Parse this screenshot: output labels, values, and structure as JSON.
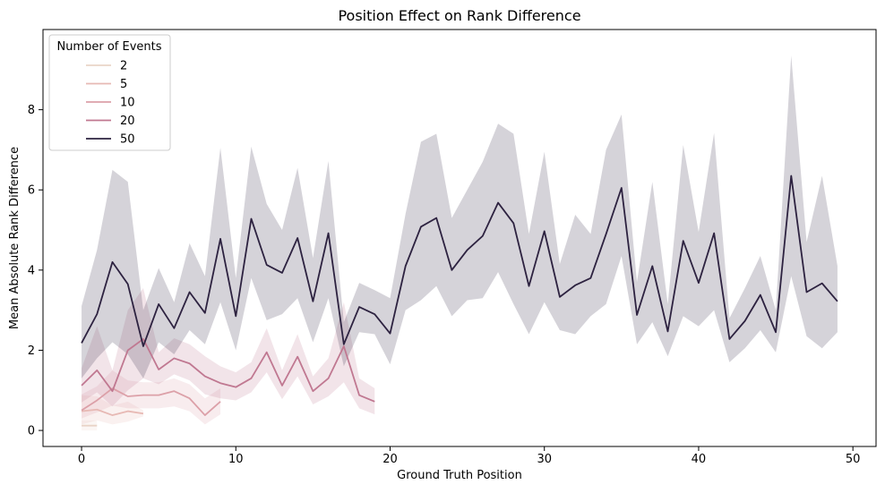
{
  "chart_data": {
    "type": "line",
    "title": "Position Effect on Rank Difference",
    "xlabel": "Ground Truth Position",
    "ylabel": "Mean Absolute Rank Difference",
    "xlim": [
      -2.5,
      51.5
    ],
    "ylim": [
      -0.4,
      10.0
    ],
    "xticks": [
      0,
      10,
      20,
      30,
      40,
      50
    ],
    "yticks": [
      0,
      2,
      4,
      6,
      8
    ],
    "grid": false,
    "legend": {
      "title": "Number of Events",
      "position": "upper-left"
    },
    "series": [
      {
        "name": "2",
        "color": "#e9d4c7",
        "x": [
          0,
          1
        ],
        "values": [
          0.12,
          0.12
        ],
        "lower": [
          0.0,
          0.0
        ],
        "upper": [
          0.25,
          0.25
        ]
      },
      {
        "name": "5",
        "color": "#e7b9b4",
        "x": [
          0,
          1,
          2,
          3,
          4
        ],
        "values": [
          0.48,
          0.52,
          0.38,
          0.48,
          0.42
        ],
        "lower": [
          0.15,
          0.25,
          0.15,
          0.22,
          0.35
        ],
        "upper": [
          0.88,
          0.85,
          0.62,
          0.72,
          0.5
        ]
      },
      {
        "name": "10",
        "color": "#dca0a8",
        "x": [
          0,
          1,
          2,
          3,
          4,
          5,
          6,
          7,
          8,
          9
        ],
        "values": [
          0.5,
          0.75,
          1.05,
          0.85,
          0.88,
          0.88,
          0.98,
          0.8,
          0.38,
          0.72
        ],
        "lower": [
          0.3,
          0.45,
          0.62,
          0.55,
          0.55,
          0.55,
          0.6,
          0.48,
          0.15,
          0.4
        ],
        "upper": [
          0.9,
          1.1,
          1.5,
          1.25,
          1.2,
          1.2,
          1.3,
          1.15,
          0.8,
          1.05
        ]
      },
      {
        "name": "20",
        "color": "#c07891",
        "x": [
          0,
          1,
          2,
          3,
          4,
          5,
          6,
          7,
          8,
          9,
          10,
          11,
          12,
          13,
          14,
          15,
          16,
          17,
          18,
          19
        ],
        "values": [
          1.12,
          1.5,
          0.98,
          2.0,
          2.28,
          1.52,
          1.8,
          1.67,
          1.35,
          1.18,
          1.08,
          1.3,
          1.95,
          1.12,
          1.84,
          0.98,
          1.3,
          2.1,
          0.88,
          0.72
        ],
        "lower": [
          0.7,
          0.95,
          0.6,
          1.0,
          1.3,
          1.15,
          1.4,
          1.25,
          0.9,
          0.8,
          0.75,
          0.95,
          1.45,
          0.78,
          1.35,
          0.65,
          0.85,
          1.2,
          0.55,
          0.4
        ],
        "upper": [
          1.55,
          2.6,
          1.5,
          3.0,
          3.55,
          1.95,
          2.3,
          2.15,
          1.85,
          1.6,
          1.45,
          1.7,
          2.55,
          1.5,
          2.4,
          1.35,
          1.8,
          3.2,
          1.3,
          1.05
        ]
      },
      {
        "name": "50",
        "color": "#2d2240",
        "x": [
          0,
          1,
          2,
          3,
          4,
          5,
          6,
          7,
          8,
          9,
          10,
          11,
          12,
          13,
          14,
          15,
          16,
          17,
          18,
          19,
          20,
          21,
          22,
          23,
          24,
          25,
          26,
          27,
          28,
          29,
          30,
          31,
          32,
          33,
          34,
          35,
          36,
          37,
          38,
          39,
          40,
          41,
          42,
          43,
          44,
          45,
          46,
          47,
          48,
          49
        ],
        "values": [
          2.18,
          2.9,
          4.2,
          3.65,
          2.1,
          3.15,
          2.55,
          3.45,
          2.93,
          4.78,
          2.85,
          5.28,
          4.13,
          3.93,
          4.8,
          3.22,
          4.92,
          2.15,
          3.08,
          2.9,
          2.42,
          4.1,
          5.08,
          5.3,
          4.0,
          4.5,
          4.85,
          5.68,
          5.17,
          3.6,
          4.97,
          3.33,
          3.62,
          3.8,
          4.9,
          6.05,
          2.88,
          4.1,
          2.47,
          4.73,
          3.68,
          4.92,
          2.28,
          2.73,
          3.38,
          2.45,
          6.35,
          3.45,
          3.67,
          3.22
        ],
        "lower": [
          1.3,
          1.8,
          2.2,
          1.9,
          1.3,
          2.2,
          1.9,
          2.5,
          2.15,
          3.2,
          2.0,
          3.8,
          2.75,
          2.9,
          3.3,
          2.2,
          3.3,
          1.6,
          2.45,
          2.4,
          1.65,
          3.0,
          3.25,
          3.6,
          2.85,
          3.25,
          3.3,
          3.95,
          3.15,
          2.4,
          3.2,
          2.5,
          2.4,
          2.85,
          3.15,
          4.35,
          2.15,
          2.7,
          1.85,
          2.85,
          2.6,
          3.0,
          1.7,
          2.05,
          2.5,
          1.95,
          3.85,
          2.35,
          2.05,
          2.45
        ],
        "upper": [
          3.1,
          4.5,
          6.5,
          6.2,
          3.0,
          4.05,
          3.2,
          4.67,
          3.85,
          7.05,
          3.8,
          7.08,
          5.65,
          5.0,
          6.55,
          4.3,
          6.72,
          2.7,
          3.68,
          3.5,
          3.3,
          5.4,
          7.2,
          7.4,
          5.3,
          6.0,
          6.7,
          7.65,
          7.4,
          4.9,
          6.95,
          4.15,
          5.38,
          4.9,
          7.0,
          7.88,
          3.7,
          6.2,
          3.15,
          7.12,
          4.95,
          7.42,
          2.8,
          3.55,
          4.35,
          3.0,
          9.35,
          4.7,
          6.35,
          4.1
        ]
      }
    ]
  }
}
